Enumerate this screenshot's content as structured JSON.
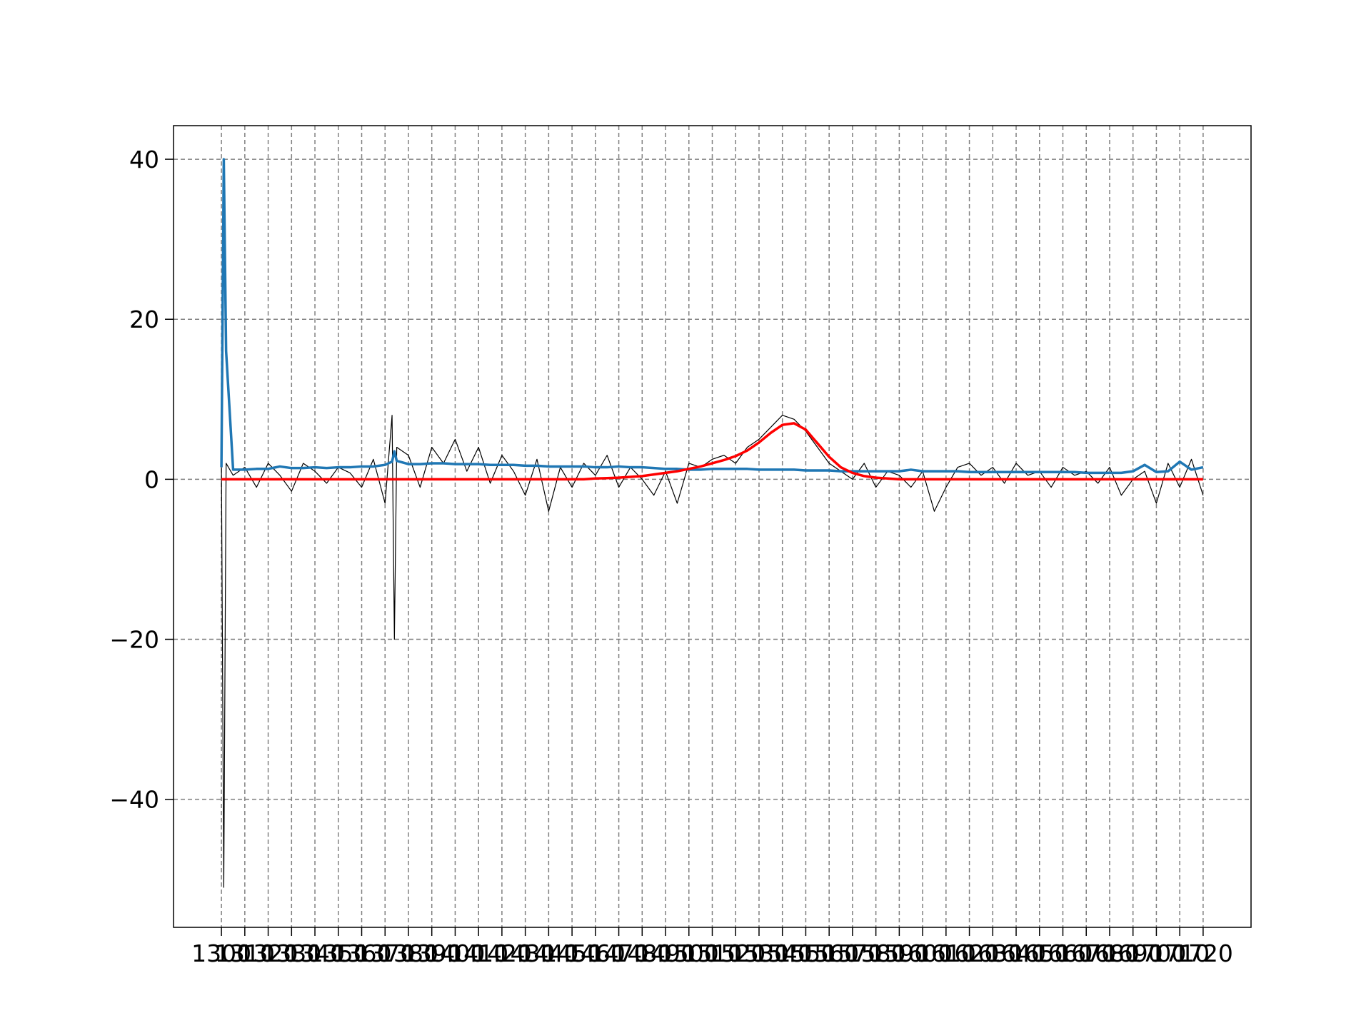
{
  "chart_data": {
    "type": "line",
    "x": [
      1300,
      1301,
      1302,
      1305,
      1310,
      1315,
      1320,
      1325,
      1330,
      1335,
      1340,
      1345,
      1350,
      1355,
      1360,
      1365,
      1370,
      1373,
      1374,
      1375,
      1380,
      1385,
      1390,
      1395,
      1400,
      1405,
      1410,
      1415,
      1420,
      1425,
      1430,
      1435,
      1440,
      1445,
      1450,
      1455,
      1460,
      1465,
      1470,
      1475,
      1480,
      1485,
      1490,
      1495,
      1500,
      1505,
      1510,
      1515,
      1520,
      1525,
      1530,
      1535,
      1540,
      1545,
      1550,
      1555,
      1560,
      1565,
      1570,
      1575,
      1580,
      1585,
      1590,
      1595,
      1600,
      1605,
      1610,
      1615,
      1620,
      1625,
      1630,
      1635,
      1640,
      1645,
      1650,
      1655,
      1660,
      1665,
      1670,
      1675,
      1680,
      1685,
      1690,
      1695,
      1700,
      1705,
      1710,
      1715,
      1720
    ],
    "series": [
      {
        "color": "#000000",
        "width": 1.2,
        "values": [
          1.5,
          -51,
          2,
          0.5,
          1.5,
          -1,
          2,
          0.5,
          -1.5,
          2,
          1,
          -0.5,
          1.5,
          0.8,
          -1,
          2.5,
          -3,
          8,
          -20,
          4,
          3,
          -1,
          4,
          2,
          5,
          1,
          4,
          -0.5,
          3,
          1,
          -2,
          2.5,
          -4,
          1.5,
          -1,
          2,
          0.5,
          3,
          -1,
          1.5,
          0,
          -2,
          1,
          -3,
          2,
          1.5,
          2.5,
          3,
          2,
          4,
          5,
          6.5,
          8,
          7.5,
          6,
          4,
          2,
          1,
          0,
          2,
          -1,
          1,
          0.5,
          -1,
          1,
          -4,
          -1,
          1.5,
          2,
          0.5,
          1.5,
          -0.5,
          2,
          0.5,
          1,
          -1,
          1.5,
          0.5,
          1,
          -0.5,
          1.5,
          -2,
          0,
          1,
          -3,
          2,
          -1,
          2.5,
          -2
        ]
      },
      {
        "color": "#1f77b4",
        "width": 3.5,
        "values": [
          1.5,
          40,
          16,
          1.2,
          1.2,
          1.3,
          1.3,
          1.6,
          1.4,
          1.4,
          1.5,
          1.4,
          1.5,
          1.5,
          1.6,
          1.6,
          1.8,
          2.2,
          3.5,
          2.3,
          1.9,
          1.9,
          2.0,
          2.0,
          1.9,
          1.9,
          1.9,
          1.8,
          1.8,
          1.8,
          1.7,
          1.7,
          1.6,
          1.6,
          1.6,
          1.6,
          1.5,
          1.5,
          1.6,
          1.5,
          1.5,
          1.4,
          1.3,
          1.3,
          1.2,
          1.2,
          1.3,
          1.3,
          1.3,
          1.3,
          1.2,
          1.2,
          1.2,
          1.2,
          1.1,
          1.1,
          1.1,
          1.0,
          1.0,
          1.0,
          1.0,
          1.0,
          1.0,
          1.2,
          1.0,
          1.0,
          1.0,
          1.0,
          0.9,
          0.9,
          0.9,
          0.9,
          0.9,
          0.9,
          0.9,
          0.9,
          0.9,
          0.9,
          0.8,
          0.8,
          0.8,
          0.8,
          1.0,
          1.8,
          0.9,
          1.0,
          2.2,
          1.2,
          1.5
        ]
      },
      {
        "color": "#ff0000",
        "width": 3.5,
        "values": [
          0,
          0,
          0,
          0,
          0,
          0,
          0,
          0,
          0,
          0,
          0,
          0,
          0,
          0,
          0,
          0,
          0,
          0,
          0,
          0,
          0,
          0,
          0,
          0,
          0,
          0,
          0,
          0,
          0,
          0,
          0,
          0,
          0,
          0,
          0,
          0,
          0.1,
          0.15,
          0.2,
          0.3,
          0.4,
          0.6,
          0.8,
          1.0,
          1.3,
          1.6,
          2.0,
          2.4,
          2.9,
          3.6,
          4.6,
          5.8,
          6.8,
          7.0,
          6.2,
          4.5,
          2.8,
          1.5,
          0.8,
          0.4,
          0.2,
          0.1,
          0,
          0,
          0,
          0,
          0,
          0,
          0,
          0,
          0,
          0,
          0,
          0,
          0,
          0,
          0,
          0,
          0,
          0,
          0,
          0,
          0,
          0,
          0,
          0,
          0,
          0,
          0
        ]
      }
    ],
    "xlim": [
      1279.5,
      1740.5
    ],
    "ylim": [
      -56,
      44.2
    ],
    "xticks": [
      1300,
      1310,
      1320,
      1330,
      1340,
      1350,
      1360,
      1370,
      1380,
      1390,
      1400,
      1410,
      1420,
      1430,
      1440,
      1450,
      1460,
      1470,
      1480,
      1490,
      1500,
      1510,
      1520,
      1530,
      1540,
      1550,
      1560,
      1570,
      1580,
      1590,
      1600,
      1610,
      1620,
      1630,
      1640,
      1650,
      1660,
      1670,
      1680,
      1690,
      1700,
      1710,
      1720
    ],
    "yticks": [
      {
        "value": -40,
        "label": "−40"
      },
      {
        "value": -20,
        "label": "−20"
      },
      0,
      20,
      40
    ],
    "grid": true
  }
}
